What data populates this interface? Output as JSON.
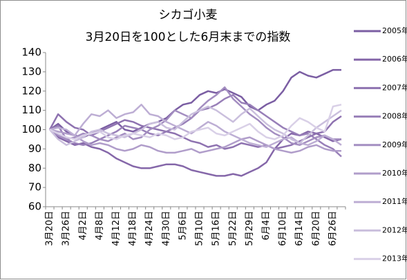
{
  "chart_data": {
    "type": "line",
    "title": "シカゴ小麦",
    "subtitle": "3月20日を100とした6月末までの指数",
    "categories": [
      "3月20日",
      null,
      "3月26日",
      null,
      "4月2日",
      null,
      "4月8日",
      null,
      "4月12日",
      null,
      "4月18日",
      null,
      "4月24日",
      null,
      "4月30日",
      null,
      "5月6日",
      null,
      "5月10日",
      null,
      "5月16日",
      null,
      "5月22日",
      null,
      "5月29日",
      null,
      "6月4日",
      null,
      "6月10日",
      null,
      "6月14日",
      null,
      "6月20日",
      null,
      "6月26日",
      null
    ],
    "series": [
      {
        "name": "2005年",
        "color": "#7b5ea3",
        "values": [
          100,
          103,
          99,
          97,
          96,
          98,
          100,
          102,
          104,
          100,
          99,
          101,
          103,
          104,
          106,
          110,
          113,
          114,
          118,
          120,
          119,
          121,
          119,
          117,
          112,
          110,
          113,
          115,
          120,
          127,
          130,
          128,
          127,
          129,
          131,
          131
        ]
      },
      {
        "name": "2006年",
        "color": "#8567a9",
        "values": [
          100,
          96,
          94,
          92,
          93,
          91,
          90,
          88,
          85,
          83,
          81,
          80,
          80,
          81,
          82,
          82,
          81,
          79,
          78,
          77,
          76,
          76,
          77,
          76,
          78,
          80,
          83,
          90,
          95,
          98,
          97,
          99,
          98,
          96,
          94,
          95
        ]
      },
      {
        "name": "2007年",
        "color": "#8e72b0",
        "values": [
          100,
          108,
          104,
          101,
          100,
          97,
          99,
          101,
          103,
          105,
          104,
          102,
          101,
          100,
          99,
          98,
          96,
          94,
          93,
          91,
          92,
          90,
          91,
          93,
          92,
          91,
          92,
          90,
          91,
          92,
          94,
          96,
          98,
          99,
          104,
          107
        ]
      },
      {
        "name": "2008年",
        "color": "#987fb8",
        "values": [
          100,
          102,
          95,
          93,
          92,
          93,
          95,
          97,
          99,
          102,
          101,
          100,
          98,
          97,
          99,
          101,
          103,
          106,
          110,
          111,
          113,
          116,
          118,
          114,
          113,
          110,
          107,
          104,
          101,
          99,
          97,
          98,
          95,
          92,
          90,
          86
        ]
      },
      {
        "name": "2009年",
        "color": "#a48ec1",
        "values": [
          100,
          97,
          95,
          96,
          98,
          97,
          95,
          94,
          96,
          98,
          95,
          96,
          100,
          102,
          105,
          110,
          108,
          106,
          111,
          115,
          118,
          122,
          116,
          112,
          108,
          105,
          101,
          98,
          96,
          93,
          92,
          94,
          96,
          97,
          95,
          95
        ]
      },
      {
        "name": "2010年",
        "color": "#b09dca",
        "values": [
          100,
          99,
          98,
          97,
          94,
          92,
          93,
          92,
          90,
          89,
          90,
          92,
          91,
          89,
          88,
          88,
          89,
          90,
          88,
          89,
          90,
          91,
          93,
          95,
          96,
          94,
          92,
          90,
          89,
          88,
          89,
          91,
          92,
          90,
          89,
          89
        ]
      },
      {
        "name": "2011年",
        "color": "#bdaed4",
        "values": [
          100,
          101,
          100,
          97,
          103,
          108,
          107,
          110,
          106,
          108,
          109,
          113,
          108,
          107,
          104,
          102,
          100,
          98,
          101,
          104,
          102,
          99,
          97,
          95,
          93,
          92,
          91,
          93,
          95,
          96,
          93,
          92,
          94,
          97,
          95,
          92
        ]
      },
      {
        "name": "2012年",
        "color": "#cabfdd",
        "values": [
          100,
          95,
          92,
          94,
          96,
          99,
          100,
          98,
          97,
          96,
          98,
          100,
          103,
          104,
          101,
          100,
          104,
          108,
          110,
          112,
          110,
          107,
          104,
          108,
          111,
          107,
          103,
          100,
          98,
          95,
          93,
          97,
          101,
          104,
          107,
          110
        ]
      },
      {
        "name": "2013年",
        "color": "#d9d0e7",
        "values": [
          100,
          98,
          96,
          95,
          97,
          98,
          99,
          96,
          95,
          97,
          98,
          97,
          96,
          98,
          97,
          95,
          96,
          99,
          100,
          101,
          98,
          97,
          99,
          101,
          103,
          99,
          96,
          95,
          97,
          102,
          106,
          104,
          101,
          99,
          112,
          113
        ]
      }
    ],
    "ylim": [
      60,
      140
    ],
    "yticks": [
      60,
      70,
      80,
      90,
      100,
      110,
      120,
      130,
      140
    ],
    "grid": false,
    "legend": "right"
  }
}
